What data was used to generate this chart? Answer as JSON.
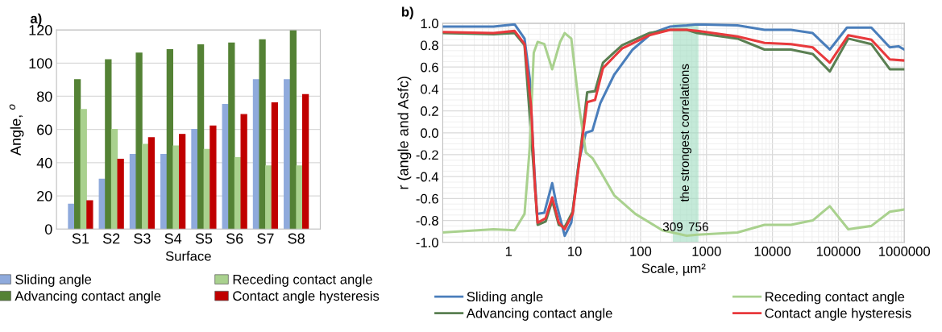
{
  "chart_data": [
    {
      "type": "bar",
      "title": "a)",
      "xlabel": "Surface",
      "ylabel": "Angle, $^{o}$",
      "categories": [
        "S1",
        "S2",
        "S3",
        "S4",
        "S5",
        "S6",
        "S7",
        "S8"
      ],
      "series": [
        {
          "name": "Sliding angle",
          "color": "#8faadc",
          "values": [
            15,
            30,
            45,
            45,
            60,
            75,
            90,
            90
          ]
        },
        {
          "name": "Advancing contact angle",
          "color": "#548235",
          "values": [
            90,
            102,
            106,
            108,
            111,
            112,
            114,
            120
          ]
        },
        {
          "name": "Receding contact angle",
          "color": "#a9d18e",
          "values": [
            72,
            60,
            51,
            50,
            48,
            43,
            38,
            38
          ]
        },
        {
          "name": "Contact angle hysteresis",
          "color": "#c00000",
          "values": [
            17,
            42,
            55,
            57,
            62,
            69,
            76,
            81
          ]
        }
      ],
      "ylim": [
        0,
        120
      ],
      "yticks": [
        0,
        20,
        40,
        60,
        80,
        100,
        120
      ],
      "grid": "y",
      "legend": "bottom"
    },
    {
      "type": "line",
      "title": "b)",
      "xlabel": "Scale, µm²",
      "ylabel": "r (angle and Asfc)",
      "log": "x",
      "series": [
        {
          "name": "Sliding angle",
          "color": "#4a7ebb",
          "x": [
            0.1,
            0.59,
            1.23,
            1.74,
            2.09,
            2.4,
            2.69,
            3.47,
            4.57,
            5.25,
            7.08,
            8.91,
            11.7,
            14.8,
            18.6,
            24.5,
            39.8,
            75.9,
            148,
            282,
            501,
            724,
            2951,
            7586,
            19055,
            40738,
            74131,
            134896,
            316228,
            602560,
            812831,
            1000000
          ],
          "values": [
            0.97,
            0.97,
            0.99,
            0.86,
            0.49,
            -0.25,
            -0.74,
            -0.73,
            -0.46,
            -0.64,
            -0.94,
            -0.82,
            -0.25,
            0.0,
            0.02,
            0.27,
            0.53,
            0.76,
            0.91,
            0.97,
            0.98,
            0.99,
            0.98,
            0.94,
            0.94,
            0.91,
            0.76,
            0.96,
            0.96,
            0.78,
            0.79,
            0.76
          ]
        },
        {
          "name": "Advancing contact angle",
          "color": "#5a7f52",
          "x": [
            0.1,
            0.59,
            1.23,
            1.74,
            2.51,
            2.75,
            3.63,
            4.57,
            5.75,
            7.08,
            9.33,
            12.9,
            15.5,
            20.4,
            26.9,
            52.5,
            135,
            282,
            501,
            724,
            2951,
            7586,
            19055,
            40738,
            74131,
            141254,
            316228,
            602560,
            1000000
          ],
          "values": [
            0.91,
            0.9,
            0.91,
            0.8,
            -0.5,
            -0.84,
            -0.81,
            -0.62,
            -0.84,
            -0.86,
            -0.72,
            -0.05,
            0.37,
            0.38,
            0.64,
            0.8,
            0.91,
            0.94,
            0.94,
            0.91,
            0.86,
            0.76,
            0.76,
            0.72,
            0.56,
            0.86,
            0.81,
            0.58,
            0.58
          ]
        },
        {
          "name": "Receding contact angle",
          "color": "#a9d18e",
          "x": [
            0.1,
            0.59,
            1.23,
            1.74,
            2.09,
            2.4,
            2.75,
            3.47,
            4.57,
            6.03,
            7.08,
            8.91,
            11.7,
            14.8,
            18.6,
            24.5,
            39.8,
            83.2,
            214,
            501,
            724,
            2951,
            7586,
            19055,
            40738,
            74131,
            141254,
            316228,
            602560,
            1000000
          ],
          "values": [
            -0.91,
            -0.88,
            -0.89,
            -0.74,
            -0.13,
            0.73,
            0.83,
            0.81,
            0.58,
            0.83,
            0.91,
            0.86,
            0.24,
            -0.18,
            -0.23,
            -0.35,
            -0.57,
            -0.74,
            -0.89,
            -0.94,
            -0.93,
            -0.91,
            -0.84,
            -0.84,
            -0.8,
            -0.67,
            -0.88,
            -0.85,
            -0.72,
            -0.7
          ]
        },
        {
          "name": "Contact angle hysteresis",
          "color": "#e8393c",
          "x": [
            0.1,
            0.59,
            1.23,
            1.74,
            2.19,
            2.51,
            2.75,
            3.63,
            4.57,
            5.75,
            7.08,
            9.33,
            12.9,
            15.5,
            20.4,
            26.9,
            52.5,
            135,
            282,
            501,
            724,
            2951,
            7586,
            19055,
            40738,
            74131,
            141254,
            316228,
            602560,
            1000000
          ],
          "values": [
            0.92,
            0.91,
            0.93,
            0.81,
            0.24,
            -0.5,
            -0.82,
            -0.78,
            -0.59,
            -0.82,
            -0.88,
            -0.74,
            -0.08,
            0.28,
            0.3,
            0.59,
            0.77,
            0.89,
            0.94,
            0.94,
            0.93,
            0.88,
            0.82,
            0.81,
            0.78,
            0.64,
            0.89,
            0.85,
            0.67,
            0.66
          ]
        }
      ],
      "xlim": [
        0.1,
        1000000
      ],
      "xticks": [
        1,
        10,
        100,
        1000,
        10000,
        100000,
        1000000
      ],
      "ylim": [
        -1.0,
        1.0
      ],
      "yticks": [
        {
          "value": -1.0,
          "label": "-1.0"
        },
        {
          "value": -0.8,
          "label": "-0.8"
        },
        {
          "value": -0.6,
          "label": "-0.6"
        },
        {
          "value": -0.4,
          "label": "-0.4"
        },
        {
          "value": -0.2,
          "label": "-0.2"
        },
        {
          "value": 0.0,
          "label": "0.0"
        },
        {
          "value": 0.2,
          "label": "0.2"
        },
        {
          "value": 0.4,
          "label": "0.4"
        },
        {
          "value": 0.6,
          "label": "0.6"
        },
        {
          "value": 0.8,
          "label": "0.8"
        },
        {
          "value": 1.0,
          "label": "1.0"
        }
      ],
      "bands": [
        {
          "axis": "x",
          "from": 309,
          "to": 756,
          "label": "the strongest correlations",
          "color": "#9fdcbf"
        }
      ],
      "annotations": [
        {
          "text": "309",
          "x": 309,
          "y": -0.92
        },
        {
          "text": "756",
          "x": 756,
          "y": -0.92
        }
      ],
      "grid": true,
      "legend": "bottom",
      "marker": "none",
      "line_style": "solid"
    }
  ]
}
